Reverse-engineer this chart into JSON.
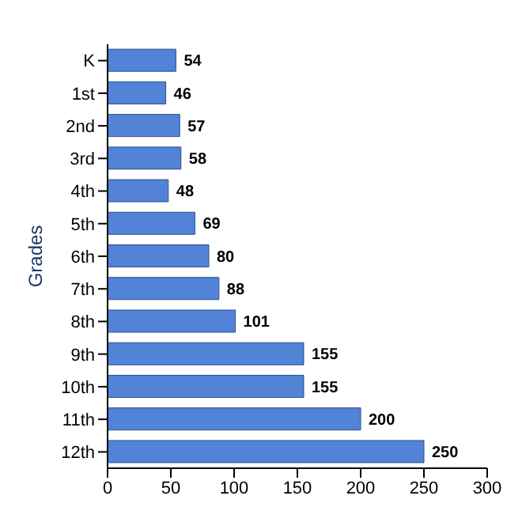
{
  "chart_data": {
    "type": "bar",
    "orientation": "horizontal",
    "ylabel": "Grades",
    "categories": [
      "K",
      "1st",
      "2nd",
      "3rd",
      "4th",
      "5th",
      "6th",
      "7th",
      "8th",
      "9th",
      "10th",
      "11th",
      "12th"
    ],
    "values": [
      54,
      46,
      57,
      58,
      48,
      69,
      80,
      88,
      101,
      155,
      155,
      200,
      250
    ],
    "color": "#5283d6",
    "xlim": [
      0,
      300
    ],
    "xticks": [
      0,
      50,
      100,
      150,
      200,
      250,
      300
    ],
    "grid": false,
    "legend": false,
    "data_labels": true
  }
}
